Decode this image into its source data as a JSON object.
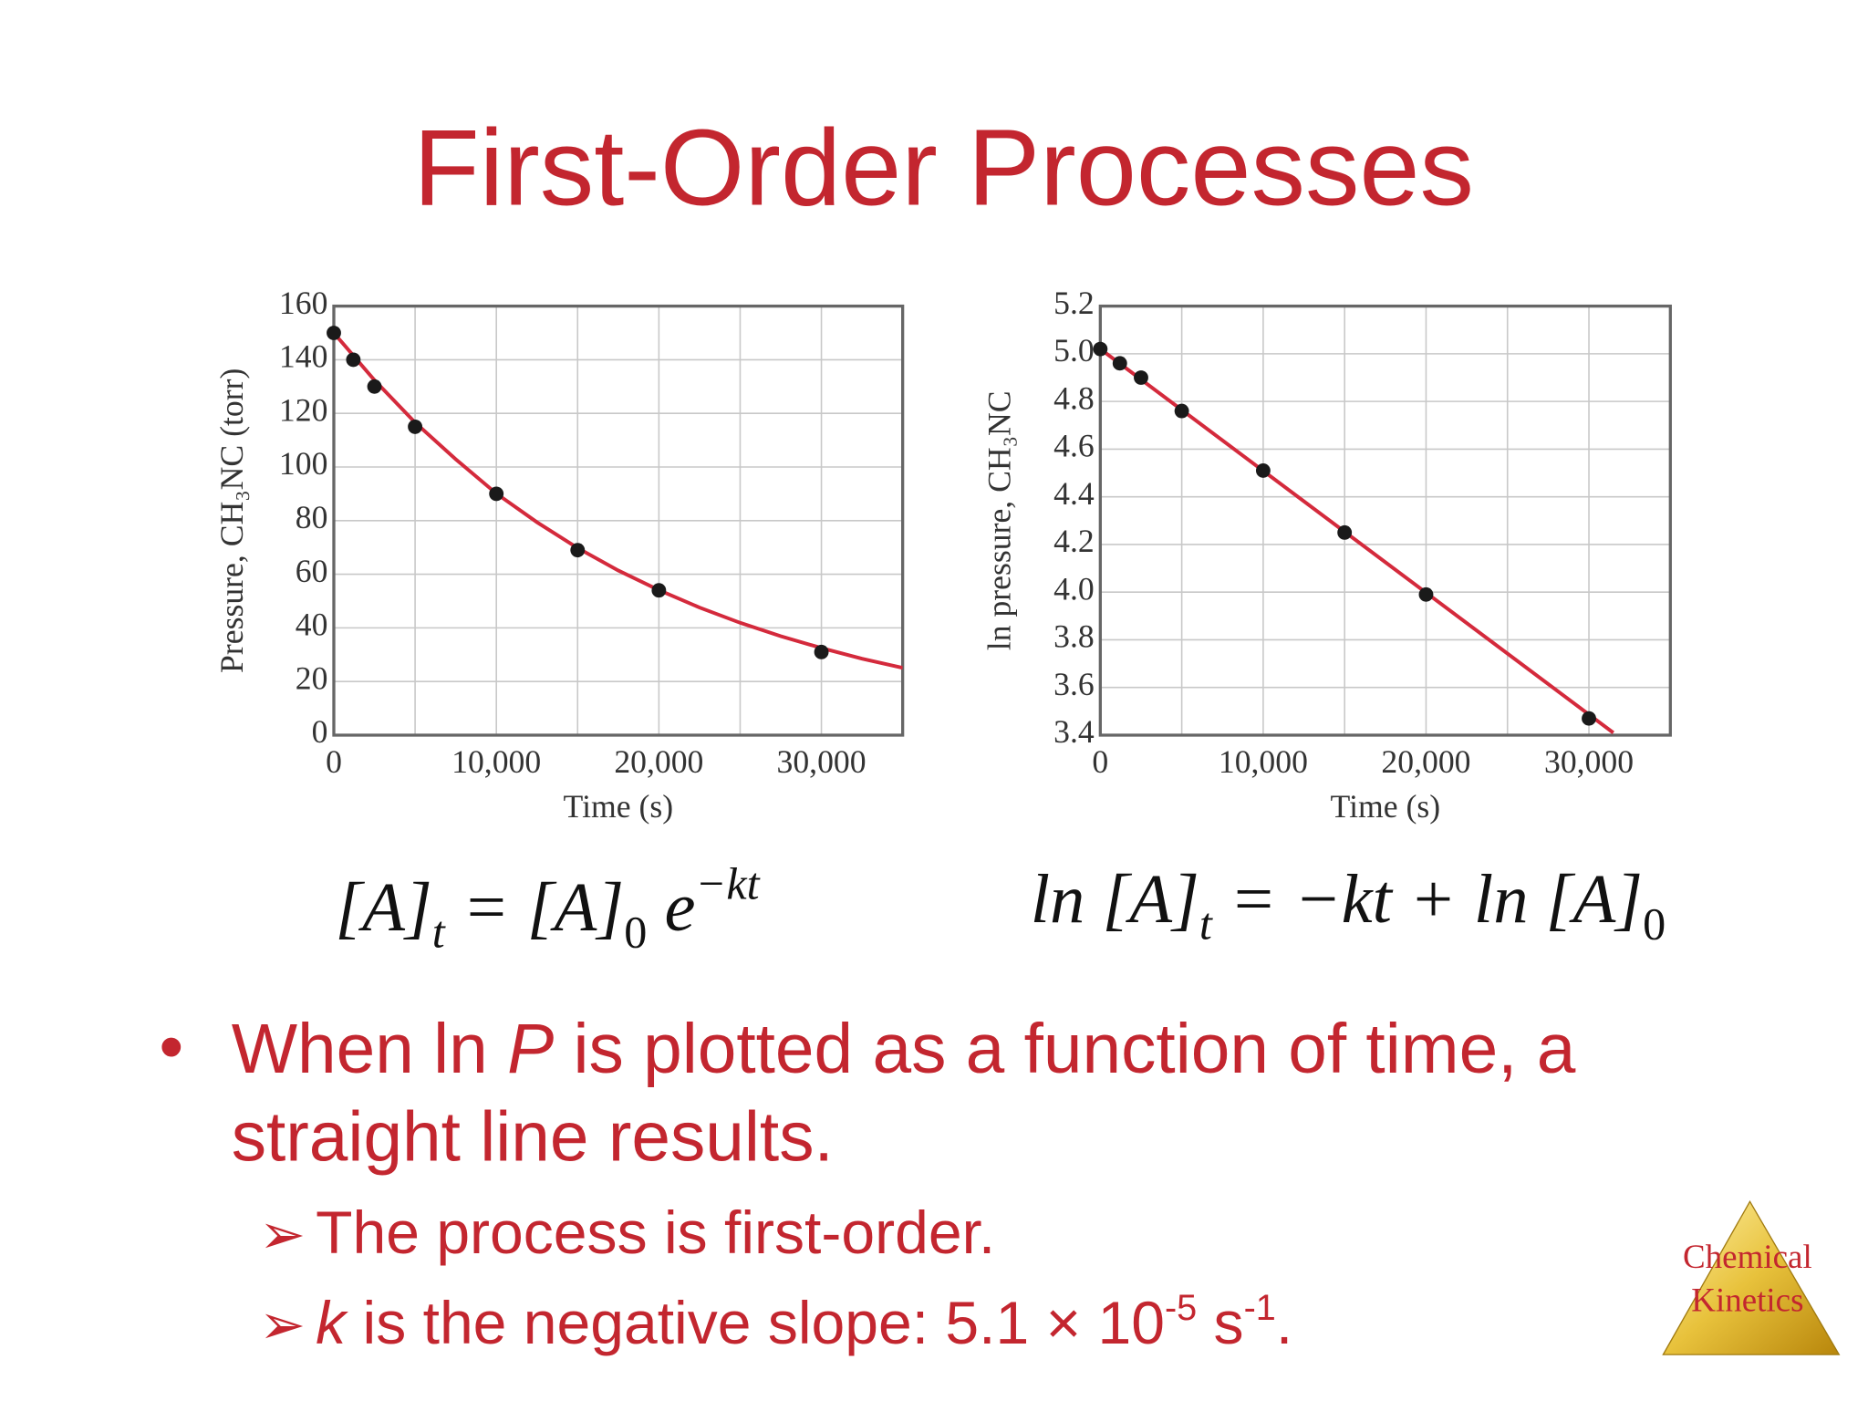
{
  "title": "First-Order Processes",
  "chart_data": [
    {
      "type": "scatter",
      "xlabel": "Time (s)",
      "ylabel": "Pressure, CH₃NC (torr)",
      "xlim": [
        0,
        35000
      ],
      "ylim": [
        0,
        160
      ],
      "xticks": [
        0,
        {
          "value": 10000,
          "label": "10,000"
        },
        {
          "value": 20000,
          "label": "20,000"
        },
        {
          "value": 30000,
          "label": "30,000"
        }
      ],
      "yticks": [
        0,
        20,
        40,
        60,
        80,
        100,
        120,
        140,
        160
      ],
      "xgrid": [
        5000,
        15000,
        25000
      ],
      "grid": true,
      "points": {
        "x": [
          0,
          1200,
          2500,
          5000,
          10000,
          15000,
          20000,
          30000
        ],
        "values": [
          150,
          140,
          130,
          115,
          90,
          69,
          54,
          31
        ],
        "color": "#1a1a1a"
      },
      "curve": {
        "x": [
          0,
          2500,
          5000,
          7500,
          10000,
          12500,
          15000,
          17500,
          20000,
          22500,
          25000,
          27500,
          30000,
          32500,
          35000
        ],
        "values": [
          150,
          132.4,
          116.6,
          102.9,
          90.1,
          79.4,
          69.8,
          61.4,
          54.1,
          47.6,
          41.9,
          36.9,
          32.5,
          28.5,
          25.1
        ],
        "color": "#d42a3c"
      }
    },
    {
      "type": "scatter",
      "xlabel": "Time (s)",
      "ylabel": "ln pressure, CH₃NC",
      "xlim": [
        0,
        35000
      ],
      "ylim": [
        3.4,
        5.2
      ],
      "xticks": [
        0,
        {
          "value": 10000,
          "label": "10,000"
        },
        {
          "value": 20000,
          "label": "20,000"
        },
        {
          "value": 30000,
          "label": "30,000"
        }
      ],
      "yticks": [
        3.4,
        3.6,
        3.8,
        {
          "value": 4,
          "label": "4.0"
        },
        4.2,
        4.4,
        4.6,
        4.8,
        {
          "value": 5,
          "label": "5.0"
        },
        5.2
      ],
      "xgrid": [
        5000,
        15000,
        25000
      ],
      "grid": true,
      "points": {
        "x": [
          0,
          1200,
          2500,
          5000,
          10000,
          15000,
          20000,
          30000
        ],
        "values": [
          5.02,
          4.96,
          4.9,
          4.76,
          4.51,
          4.25,
          3.99,
          3.47
        ],
        "color": "#1a1a1a"
      },
      "curve": {
        "x": [
          0,
          31500
        ],
        "values": [
          5.02,
          3.41
        ],
        "color": "#d42a3c"
      }
    }
  ],
  "equations": [
    [
      "[A]",
      "t",
      " = [A]",
      "0",
      " e",
      "−kt"
    ],
    [
      "ln [A]",
      "t",
      " = −kt + ln [A]",
      "0"
    ]
  ],
  "bullet": [
    "When ln ",
    "P",
    " is plotted as a function of time, a",
    "straight line results."
  ],
  "subbullets": [
    [
      "The process is first-order."
    ],
    [
      "k",
      " is the negative slope:  5.1 × 10",
      "-5",
      " s",
      "-1",
      "."
    ]
  ],
  "logo": [
    "Chemical",
    "Kinetics"
  ]
}
